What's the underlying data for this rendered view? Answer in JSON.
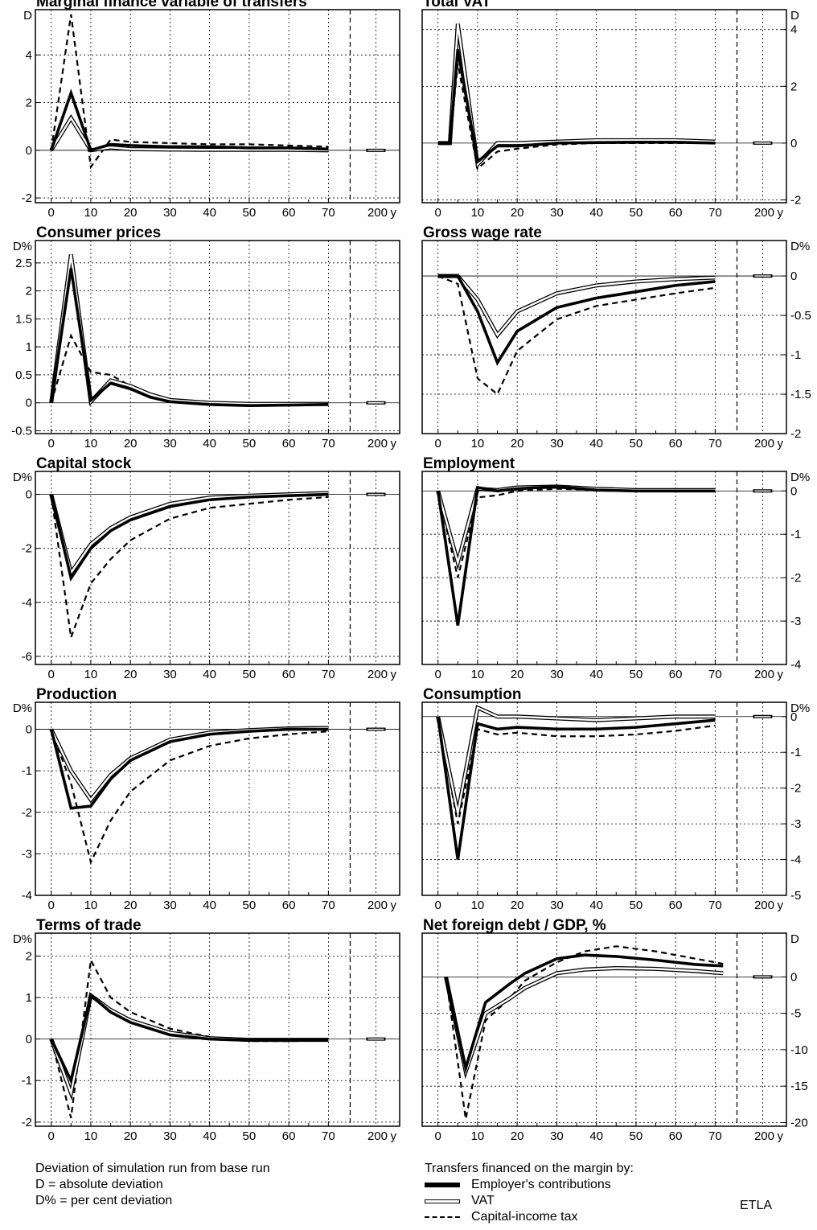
{
  "chart_data": [
    {
      "type": "line",
      "title": "Marginal finance variable of transfers",
      "unit": "D",
      "yticks": [
        -2,
        0,
        2,
        4
      ],
      "ylim": [
        -2.2,
        5.9
      ],
      "x": [
        0,
        5,
        10,
        15,
        20,
        30,
        40,
        50,
        60,
        70
      ],
      "series": [
        {
          "name": "Employer's contributions",
          "values": [
            0,
            2.4,
            0,
            0.25,
            0.2,
            0.15,
            0.15,
            0.1,
            0.1,
            0.05
          ]
        },
        {
          "name": "VAT",
          "values": [
            0,
            1.35,
            0,
            0.12,
            0.05,
            0.03,
            0.02,
            0.02,
            0.02,
            0
          ]
        },
        {
          "name": "Capital-income tax",
          "values": [
            0,
            5.7,
            -0.7,
            0.45,
            0.35,
            0.3,
            0.25,
            0.25,
            0.2,
            0.15
          ]
        }
      ]
    },
    {
      "type": "line",
      "title": "Total VAT",
      "unit": "D",
      "yticks": [
        -2,
        0,
        2,
        4
      ],
      "ylim": [
        -2.1,
        4.7
      ],
      "x": [
        0,
        3,
        5,
        10,
        15,
        20,
        30,
        40,
        50,
        60,
        70
      ],
      "series": [
        {
          "name": "Employer's contributions",
          "values": [
            0,
            0,
            3.3,
            -0.65,
            -0.1,
            -0.1,
            0,
            0.02,
            0.03,
            0.03,
            0
          ]
        },
        {
          "name": "VAT",
          "values": [
            0,
            0,
            4.2,
            -0.75,
            0,
            0,
            0.05,
            0.1,
            0.1,
            0.1,
            0.05
          ]
        },
        {
          "name": "Capital-income tax",
          "values": [
            0,
            0,
            2.8,
            -0.9,
            -0.3,
            -0.2,
            -0.05,
            0,
            0,
            0,
            0
          ]
        }
      ]
    },
    {
      "type": "line",
      "title": "Consumer prices",
      "unit": "D%",
      "yticks": [
        -0.5,
        0,
        0.5,
        1,
        1.5,
        2,
        2.5
      ],
      "ylim": [
        -0.55,
        2.9
      ],
      "x": [
        0,
        5,
        10,
        15,
        20,
        25,
        30,
        40,
        50,
        60,
        70
      ],
      "series": [
        {
          "name": "Employer's contributions",
          "values": [
            0,
            2.4,
            0.05,
            0.35,
            0.25,
            0.1,
            0.02,
            -0.03,
            -0.05,
            -0.04,
            -0.03
          ]
        },
        {
          "name": "VAT",
          "values": [
            0,
            2.65,
            0.02,
            0.4,
            0.3,
            0.15,
            0.05,
            0,
            -0.02,
            -0.02,
            -0.02
          ]
        },
        {
          "name": "Capital-income tax",
          "values": [
            0,
            1.2,
            0.55,
            0.5,
            0.3,
            0.15,
            0.05,
            0,
            -0.03,
            -0.03,
            -0.02
          ]
        }
      ]
    },
    {
      "type": "line",
      "title": "Gross wage rate",
      "unit": "D%",
      "yticks": [
        -2,
        -1.5,
        -1,
        -0.5,
        0
      ],
      "ylim": [
        -2.0,
        0.45
      ],
      "x": [
        0,
        5,
        10,
        15,
        20,
        30,
        40,
        50,
        60,
        70
      ],
      "series": [
        {
          "name": "Employer's contributions",
          "values": [
            0,
            0,
            -0.45,
            -1.1,
            -0.7,
            -0.4,
            -0.28,
            -0.2,
            -0.12,
            -0.07
          ]
        },
        {
          "name": "VAT",
          "values": [
            0,
            0,
            -0.3,
            -0.75,
            -0.45,
            -0.22,
            -0.12,
            -0.07,
            -0.04,
            -0.02
          ]
        },
        {
          "name": "Capital-income tax",
          "values": [
            0,
            -0.1,
            -1.3,
            -1.5,
            -0.95,
            -0.55,
            -0.38,
            -0.3,
            -0.22,
            -0.15
          ]
        }
      ]
    },
    {
      "type": "line",
      "title": "Capital stock",
      "unit": "D%",
      "yticks": [
        -6,
        -4,
        -2,
        0
      ],
      "ylim": [
        -6.3,
        0.85
      ],
      "x": [
        0,
        5,
        10,
        15,
        20,
        30,
        40,
        50,
        60,
        70
      ],
      "series": [
        {
          "name": "Employer's contributions",
          "values": [
            0,
            -3.1,
            -2.0,
            -1.35,
            -0.95,
            -0.45,
            -0.2,
            -0.1,
            -0.05,
            0
          ]
        },
        {
          "name": "VAT",
          "values": [
            0,
            -2.9,
            -1.85,
            -1.25,
            -0.85,
            -0.35,
            -0.12,
            -0.05,
            0,
            0.05
          ]
        },
        {
          "name": "Capital-income tax",
          "values": [
            0,
            -5.3,
            -3.3,
            -2.4,
            -1.7,
            -0.9,
            -0.5,
            -0.35,
            -0.2,
            -0.1
          ]
        }
      ]
    },
    {
      "type": "line",
      "title": "Employment",
      "unit": "D%",
      "yticks": [
        -4,
        -3,
        -2,
        -1,
        0
      ],
      "ylim": [
        -4.0,
        0.45
      ],
      "x": [
        0,
        5,
        10,
        15,
        20,
        30,
        40,
        50,
        60,
        70
      ],
      "series": [
        {
          "name": "Employer's contributions",
          "values": [
            0,
            -3.1,
            0.08,
            0,
            0.05,
            0.1,
            0.02,
            0,
            0,
            0
          ]
        },
        {
          "name": "VAT",
          "values": [
            0,
            -1.65,
            0.05,
            0.02,
            0.08,
            0.1,
            0.05,
            0.02,
            0.02,
            0.02
          ]
        },
        {
          "name": "Capital-income tax",
          "values": [
            0,
            -2.0,
            -0.15,
            -0.1,
            0,
            0.05,
            0.02,
            0,
            0,
            0
          ]
        }
      ]
    },
    {
      "type": "line",
      "title": "Production",
      "unit": "D%",
      "yticks": [
        -4,
        -3,
        -2,
        -1,
        0
      ],
      "ylim": [
        -4.0,
        0.65
      ],
      "x": [
        0,
        5,
        10,
        15,
        20,
        30,
        40,
        50,
        60,
        70
      ],
      "series": [
        {
          "name": "Employer's contributions",
          "values": [
            0,
            -1.9,
            -1.85,
            -1.2,
            -0.75,
            -0.3,
            -0.12,
            -0.05,
            0,
            0
          ]
        },
        {
          "name": "VAT",
          "values": [
            0,
            -1.0,
            -1.7,
            -1.1,
            -0.7,
            -0.25,
            -0.08,
            -0.02,
            0.02,
            0.03
          ]
        },
        {
          "name": "Capital-income tax",
          "values": [
            0,
            -1.3,
            -3.2,
            -2.2,
            -1.5,
            -0.75,
            -0.4,
            -0.22,
            -0.12,
            -0.05
          ]
        }
      ]
    },
    {
      "type": "line",
      "title": "Consumption",
      "unit": "D%",
      "yticks": [
        -5,
        -4,
        -3,
        -2,
        -1,
        0
      ],
      "ylim": [
        -5.0,
        0.4
      ],
      "x": [
        0,
        5,
        10,
        15,
        20,
        30,
        40,
        50,
        60,
        70
      ],
      "series": [
        {
          "name": "Employer's contributions",
          "values": [
            0,
            -4.0,
            -0.2,
            -0.35,
            -0.3,
            -0.35,
            -0.35,
            -0.3,
            -0.2,
            -0.1
          ]
        },
        {
          "name": "VAT",
          "values": [
            0,
            -2.7,
            0.25,
            0,
            0,
            -0.05,
            -0.1,
            -0.05,
            0,
            0
          ]
        },
        {
          "name": "Capital-income tax",
          "values": [
            0,
            -3.0,
            -0.35,
            -0.5,
            -0.45,
            -0.55,
            -0.55,
            -0.5,
            -0.4,
            -0.25
          ]
        }
      ]
    },
    {
      "type": "line",
      "title": "Terms of trade",
      "unit": "D%",
      "yticks": [
        -2,
        -1,
        0,
        1,
        2
      ],
      "ylim": [
        -2.1,
        2.55
      ],
      "x": [
        0,
        5,
        10,
        15,
        20,
        30,
        40,
        50,
        60,
        70
      ],
      "series": [
        {
          "name": "Employer's contributions",
          "values": [
            0,
            -1.0,
            1.05,
            0.65,
            0.4,
            0.1,
            0,
            -0.03,
            -0.02,
            -0.02
          ]
        },
        {
          "name": "VAT",
          "values": [
            0,
            -1.3,
            1.05,
            0.7,
            0.45,
            0.15,
            0.02,
            -0.02,
            -0.02,
            -0.02
          ]
        },
        {
          "name": "Capital-income tax",
          "values": [
            0,
            -1.9,
            1.9,
            1.0,
            0.65,
            0.25,
            0.05,
            -0.05,
            -0.05,
            -0.03
          ]
        }
      ]
    },
    {
      "type": "line",
      "title": "Net foreign debt / GDP, %",
      "unit": "D",
      "yticks": [
        -20,
        -15,
        -10,
        -5,
        0
      ],
      "ylim": [
        -20.5,
        6.0
      ],
      "x": [
        2,
        7,
        12,
        18,
        22,
        30,
        37,
        45,
        55,
        65,
        72
      ],
      "series": [
        {
          "name": "Employer's contributions",
          "values": [
            0,
            -12.5,
            -3.5,
            -1.0,
            0.5,
            2.5,
            3.0,
            2.8,
            2.3,
            1.7,
            1.5
          ]
        },
        {
          "name": "VAT",
          "values": [
            0,
            -13.0,
            -5.0,
            -3.0,
            -1.5,
            0.5,
            1.0,
            1.2,
            1.1,
            0.8,
            0.5
          ]
        },
        {
          "name": "Capital-income tax",
          "values": [
            0,
            -19.5,
            -6.0,
            -3.0,
            -0.5,
            2.0,
            3.5,
            4.2,
            3.5,
            2.5,
            1.8
          ]
        }
      ]
    }
  ],
  "x_axis": {
    "ticks": [
      "0",
      "10",
      "20",
      "30",
      "40",
      "50",
      "60",
      "70"
    ],
    "far_tick": "200",
    "unit_label": "y"
  },
  "notes": {
    "line1": "Deviation of simulation run from base run",
    "line2": "D = absolute deviation",
    "line3": "D% = per cent deviation"
  },
  "legend": {
    "title": "Transfers financed on the margin by:",
    "items": [
      "Employer's contributions",
      "VAT",
      "Capital-income tax"
    ]
  },
  "credit": "ETLA"
}
